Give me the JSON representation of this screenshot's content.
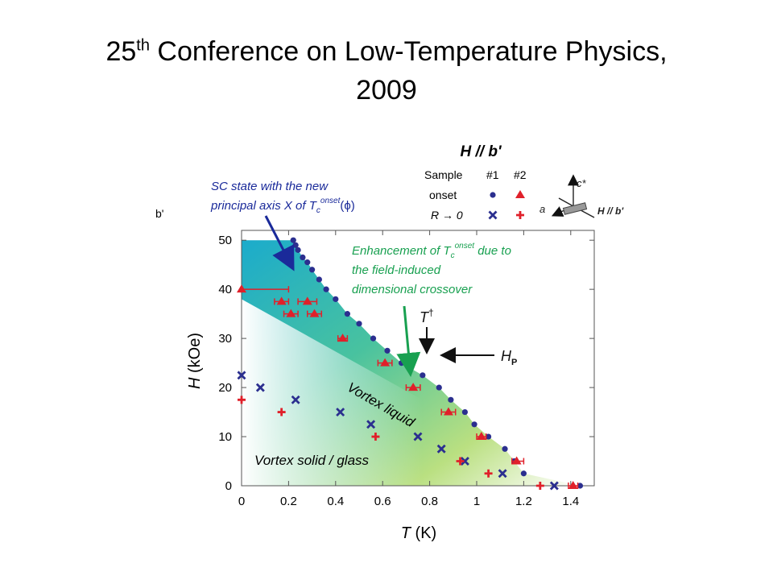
{
  "slide": {
    "title_main": "25",
    "title_sup": "th",
    "title_rest": " Conference on Low-Temperature Physics,",
    "title_line2": "2009"
  },
  "chart_data": {
    "type": "scatter",
    "title": "H // b'",
    "xlabel": "T (K)",
    "ylabel": "H (kOe)",
    "xlim": [
      0,
      1.5
    ],
    "ylim": [
      0,
      52
    ],
    "xticks": [
      "0",
      "0.2",
      "0.4",
      "0.6",
      "0.8",
      "1",
      "1.2",
      "1.4"
    ],
    "yticks": [
      "0",
      "10",
      "20",
      "30",
      "40",
      "50"
    ],
    "legend": {
      "placement": "top-right",
      "header_sample": "Sample",
      "col1": "#1",
      "col2": "#2",
      "row1": "onset",
      "row2": "R → 0"
    },
    "axes_diagram": {
      "c": "c*",
      "a": "a",
      "h": "H // b'"
    },
    "corner_label": "b'",
    "annotations": {
      "sc_state_line1": "SC state with the new",
      "sc_state_line2": "principal axis X of T",
      "enh_line1": "Enhancement of T",
      "enh_line1_tail": " due to",
      "enh_line2": "the field-induced",
      "enh_line3": "dimensional crossover",
      "t_dagger": "T",
      "dagger": "†",
      "hp": "H",
      "hp_sub": "P",
      "vortex_liquid": "Vortex liquid",
      "vortex_solid": "Vortex solid / glass",
      "sub_c": "c",
      "sup_onset": "onset",
      "phi": "(ϕ)"
    },
    "colors": {
      "sample1": "#2b2f8f",
      "sample2": "#e0202a",
      "arrow_blue": "#1a2a9a",
      "arrow_green": "#18a050"
    },
    "series": [
      {
        "name": "#1 onset",
        "marker": "dot",
        "color": "#2b2f8f",
        "points": [
          [
            0.22,
            50
          ],
          [
            0.23,
            49
          ],
          [
            0.24,
            48
          ],
          [
            0.26,
            46.5
          ],
          [
            0.28,
            45.5
          ],
          [
            0.3,
            44
          ],
          [
            0.33,
            42
          ],
          [
            0.36,
            40
          ],
          [
            0.4,
            38
          ],
          [
            0.45,
            35
          ],
          [
            0.5,
            33
          ],
          [
            0.56,
            30
          ],
          [
            0.62,
            27.5
          ],
          [
            0.68,
            25
          ],
          [
            0.77,
            22.5
          ],
          [
            0.84,
            20
          ],
          [
            0.89,
            17.5
          ],
          [
            0.95,
            15
          ],
          [
            0.99,
            12.5
          ],
          [
            1.05,
            10
          ],
          [
            1.12,
            7.5
          ],
          [
            1.16,
            5
          ],
          [
            1.2,
            2.5
          ],
          [
            1.44,
            0
          ]
        ]
      },
      {
        "name": "#2 onset",
        "marker": "triangle",
        "color": "#e0202a",
        "points": [
          [
            0,
            40
          ],
          [
            0.17,
            37.5
          ],
          [
            0.21,
            35
          ],
          [
            0.28,
            37.5
          ],
          [
            0.31,
            35
          ],
          [
            0.43,
            30
          ],
          [
            0.61,
            25
          ],
          [
            0.73,
            20
          ],
          [
            0.88,
            15
          ],
          [
            1.02,
            10
          ],
          [
            1.17,
            5
          ],
          [
            1.41,
            0
          ]
        ],
        "xerr": [
          [
            0,
            0.2
          ],
          [
            0.14,
            0.2
          ],
          [
            0.18,
            0.24
          ],
          [
            0.24,
            0.32
          ],
          [
            0.28,
            0.34
          ],
          [
            0.41,
            0.45
          ],
          [
            0.58,
            0.64
          ],
          [
            0.7,
            0.76
          ],
          [
            0.85,
            0.91
          ],
          [
            1.0,
            1.04
          ],
          [
            1.15,
            1.2
          ],
          [
            1.39,
            1.43
          ]
        ]
      },
      {
        "name": "#1 R → 0",
        "marker": "x",
        "color": "#2b2f8f",
        "points": [
          [
            0,
            22.5
          ],
          [
            0.08,
            20
          ],
          [
            0.23,
            17.5
          ],
          [
            0.42,
            15
          ],
          [
            0.55,
            12.5
          ],
          [
            0.75,
            10
          ],
          [
            0.85,
            7.5
          ],
          [
            0.95,
            5
          ],
          [
            1.11,
            2.5
          ],
          [
            1.33,
            0
          ]
        ]
      },
      {
        "name": "#2 R → 0",
        "marker": "plus",
        "color": "#e0202a",
        "points": [
          [
            0,
            17.5
          ],
          [
            0.17,
            15
          ],
          [
            0.57,
            10
          ],
          [
            0.93,
            5
          ],
          [
            1.05,
            2.5
          ],
          [
            1.27,
            0
          ]
        ]
      }
    ]
  }
}
